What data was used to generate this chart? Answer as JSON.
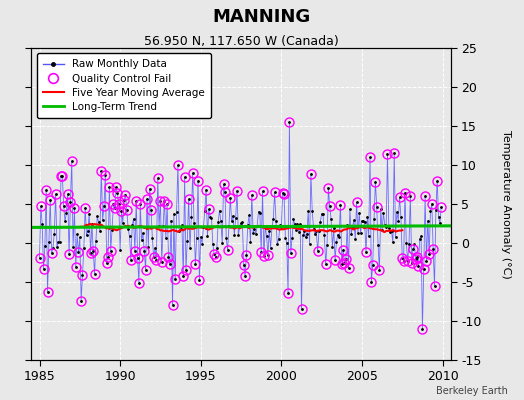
{
  "title": "MANNING",
  "subtitle": "56.950 N, 117.650 W (Canada)",
  "watermark": "Berkeley Earth",
  "xlim": [
    1984.5,
    2010.5
  ],
  "ylim": [
    -15,
    25
  ],
  "yticks": [
    -15,
    -10,
    -5,
    0,
    5,
    10,
    15,
    20,
    25
  ],
  "xticks": [
    1985,
    1990,
    1995,
    2000,
    2005,
    2010
  ],
  "ylabel": "Temperature Anomaly (°C)",
  "raw_color": "#5555ff",
  "ma_color": "#ff0000",
  "trend_color": "#00bb00",
  "qc_color": "#ff00ff",
  "background_color": "#e8e8e8",
  "trend_y": [
    2.0,
    2.2
  ],
  "figsize": [
    5.24,
    4.0
  ],
  "dpi": 100
}
